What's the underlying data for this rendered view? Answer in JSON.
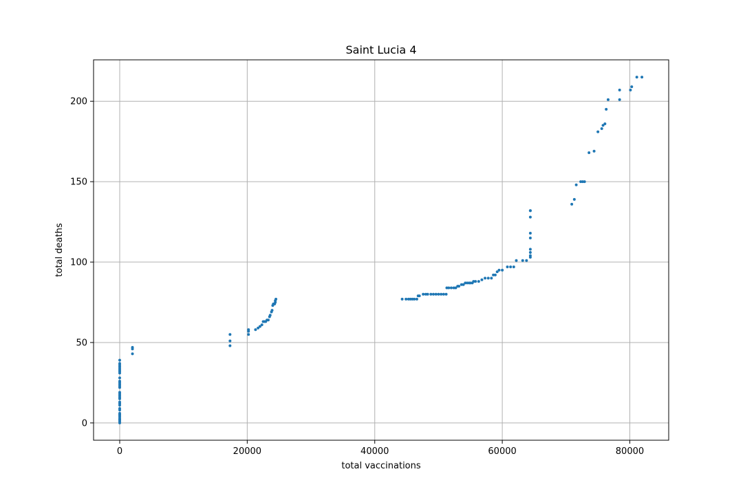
{
  "chart_data": {
    "type": "scatter",
    "title": "Saint Lucia 4",
    "xlabel": "total vaccinations",
    "ylabel": "total deaths",
    "xlim": [
      -4100,
      86100
    ],
    "ylim": [
      -10.75,
      225.75
    ],
    "xticks": [
      0,
      20000,
      40000,
      60000,
      80000
    ],
    "yticks": [
      0,
      50,
      100,
      150,
      200
    ],
    "grid": true,
    "marker_color": "#1f77b4",
    "series": [
      {
        "x": [
          0,
          0,
          0,
          0,
          0,
          0,
          0,
          0,
          0,
          0,
          0,
          0,
          0,
          0,
          0,
          0,
          0,
          0,
          0,
          0,
          0,
          0,
          0,
          0,
          0,
          0,
          0,
          0,
          0,
          0,
          0,
          0,
          0,
          2000,
          2000,
          2000,
          17300,
          17300,
          17300,
          20200,
          20200,
          20200,
          21300,
          21700,
          22000,
          22300,
          22500,
          22700,
          22900,
          23100,
          23300,
          23500,
          23600,
          23800,
          23900,
          24000,
          24100,
          24200,
          24300,
          24400,
          24400,
          24500,
          44300,
          44900,
          45300,
          45600,
          45900,
          46200,
          46600,
          46800,
          47000,
          47600,
          48000,
          48300,
          48800,
          49200,
          49600,
          50000,
          50400,
          50800,
          51200,
          51300,
          51600,
          52000,
          52400,
          52700,
          53000,
          53200,
          53600,
          53900,
          54200,
          54500,
          54800,
          55000,
          55300,
          55500,
          55800,
          56300,
          56800,
          57300,
          57800,
          58300,
          58600,
          58900,
          59200,
          59500,
          60000,
          60800,
          61300,
          61800,
          62200,
          63200,
          63800,
          64400,
          64400,
          64400,
          64400,
          64400,
          64400,
          64400,
          64400,
          64400,
          70900,
          71300,
          71600,
          72300,
          72600,
          72900,
          73600,
          74400,
          75000,
          75600,
          75800,
          76100,
          76300,
          76600,
          78400,
          78400,
          80100,
          80300,
          81100,
          81900
        ],
        "y": [
          0,
          1,
          2,
          3,
          4,
          5,
          6,
          8,
          9,
          11,
          12,
          13,
          15,
          16,
          17,
          18,
          19,
          22,
          23,
          24,
          25,
          26,
          28,
          31,
          32,
          33,
          34,
          35,
          36,
          37,
          39,
          2,
          5,
          43,
          46,
          47,
          48,
          51,
          55,
          55,
          57,
          58,
          58,
          59,
          60,
          61,
          63,
          63,
          63,
          64,
          64,
          66,
          67,
          69,
          70,
          73,
          74,
          74,
          74,
          75,
          76,
          77,
          77,
          77,
          77,
          77,
          77,
          77,
          77,
          79,
          79,
          80,
          80,
          80,
          80,
          80,
          80,
          80,
          80,
          80,
          80,
          84,
          84,
          84,
          84,
          84,
          85,
          85,
          86,
          86,
          87,
          87,
          87,
          87,
          87,
          88,
          88,
          88,
          89,
          90,
          90,
          90,
          92,
          92,
          94,
          95,
          95,
          97,
          97,
          97,
          101,
          101,
          101,
          103,
          104,
          106,
          108,
          115,
          118,
          128,
          132,
          132,
          136,
          139,
          148,
          150,
          150,
          150,
          168,
          169,
          181,
          183,
          185,
          186,
          195,
          201,
          201,
          207,
          207,
          209,
          215,
          215
        ]
      }
    ]
  }
}
